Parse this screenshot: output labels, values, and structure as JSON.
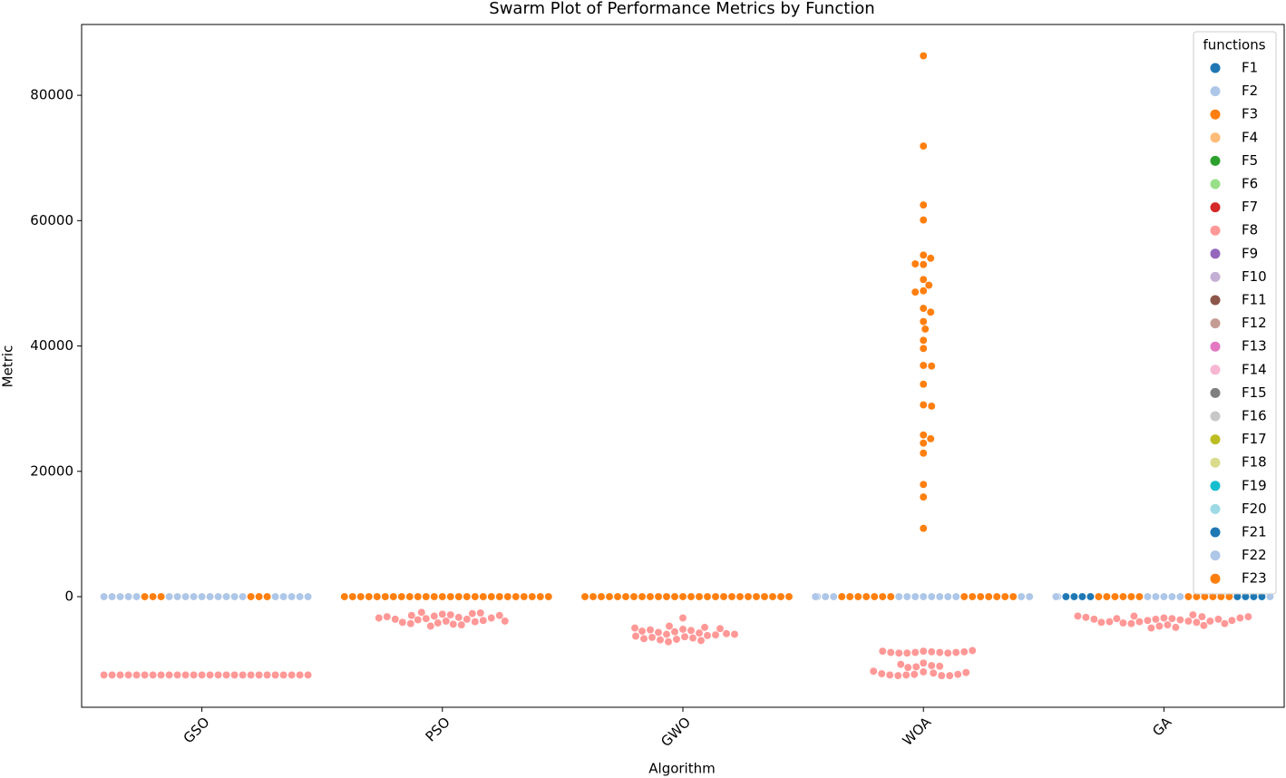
{
  "chart_data": {
    "type": "swarm",
    "title": "Swarm Plot of Performance Metrics by Function",
    "x_label": "Algorithm",
    "y_label": "Metric",
    "legend_title": "functions",
    "legend_position": "upper right",
    "categories": [
      "GSO",
      "PSO",
      "GWO",
      "WOA",
      "GA"
    ],
    "ylim": [
      -17650,
      91300
    ],
    "yticks": [
      0,
      20000,
      40000,
      60000,
      80000
    ],
    "series": [
      {
        "name": "F1",
        "color": "#1f77b4",
        "values": [
          [],
          [],
          [],
          [],
          []
        ]
      },
      {
        "name": "F2",
        "color": "#aec7e8",
        "values": [
          [
            0,
            0,
            0,
            0,
            0,
            0,
            0,
            0,
            0,
            0
          ],
          [],
          [],
          [
            0,
            0,
            0,
            0,
            0,
            0,
            0,
            0
          ],
          [
            0,
            0,
            0,
            0,
            0
          ]
        ]
      },
      {
        "name": "F3",
        "color": "#ff7f0e",
        "values": [
          [
            0,
            0,
            0,
            0,
            0,
            0
          ],
          [
            0,
            0,
            0,
            0,
            0,
            0,
            0,
            0,
            0,
            0,
            0,
            0,
            0,
            0,
            0,
            0,
            0,
            0,
            0,
            0,
            0,
            0,
            0,
            0,
            0,
            0
          ],
          [
            0,
            0,
            0,
            0,
            0,
            0,
            0,
            0,
            0,
            0,
            0,
            0,
            0,
            0,
            0,
            0,
            0,
            0,
            0,
            0,
            0,
            0,
            0,
            0,
            0,
            0
          ],
          [
            0,
            0,
            0,
            0,
            0,
            0,
            0,
            0,
            0,
            0,
            0,
            0,
            0,
            0,
            86300,
            71900,
            62500,
            60100,
            54500,
            54000,
            53000,
            53100,
            50600,
            49700,
            48800,
            48600,
            46000,
            45400,
            43900,
            42700,
            40900,
            39600,
            36900,
            36800,
            33900,
            30600,
            30400,
            25800,
            25200,
            24500,
            22900,
            17900,
            15900,
            10900
          ],
          [
            0,
            0,
            0,
            0,
            0,
            0,
            0,
            0,
            0,
            0,
            0,
            0
          ]
        ]
      },
      {
        "name": "F4",
        "color": "#ffbb78",
        "values": [
          [],
          [],
          [],
          [],
          []
        ]
      },
      {
        "name": "F5",
        "color": "#2ca02c",
        "values": [
          [],
          [],
          [],
          [],
          []
        ]
      },
      {
        "name": "F6",
        "color": "#98df8a",
        "values": [
          [],
          [],
          [],
          [],
          []
        ]
      },
      {
        "name": "F7",
        "color": "#d62728",
        "values": [
          [],
          [],
          [],
          [],
          []
        ]
      },
      {
        "name": "F8",
        "color": "#ff9896",
        "values": [
          [
            -12500,
            -12500,
            -12500,
            -12500,
            -12500,
            -12500,
            -12500,
            -12500,
            -12500,
            -12500,
            -12500,
            -12500,
            -12500,
            -12500,
            -12500,
            -12500,
            -12500,
            -12500,
            -12500,
            -12500,
            -12500,
            -12500,
            -12500,
            -12500,
            -12500,
            -12500
          ],
          [
            -2800,
            -2900,
            -3100,
            -3300,
            -3500,
            -3600,
            -3700,
            -3900,
            -4000,
            -4200,
            -4400,
            -4700,
            -4500,
            -4300,
            -4100,
            -3800,
            -3600,
            -3400,
            -3200,
            -3000,
            -2700,
            -2500,
            -2600,
            -3000,
            -3400,
            -3900
          ],
          [
            -5200,
            -5400,
            -5600,
            -5800,
            -6000,
            -6200,
            -6400,
            -6600,
            -6800,
            -7000,
            -7200,
            -6900,
            -6500,
            -6100,
            -5700,
            -5300,
            -4900,
            -4700,
            -5100,
            -5500,
            -5900,
            -6300,
            -3400,
            -5000,
            -6000,
            -6700
          ],
          [
            -8700,
            -8800,
            -8900,
            -8900,
            -9000,
            -9000,
            -9000,
            -8900,
            -8900,
            -8800,
            -8700,
            -8600,
            -10600,
            -11000,
            -11200,
            -11300,
            -11100,
            -10800,
            -12000,
            -12200,
            -12400,
            -12500,
            -12600,
            -12600,
            -12600,
            -12500,
            -12400,
            -12300,
            -12100,
            -11900
          ],
          [
            -3400,
            -3500,
            -3600,
            -3700,
            -3800,
            -3900,
            -4000,
            -4100,
            -4300,
            -4500,
            -4700,
            -4900,
            -5000,
            -4600,
            -4200,
            -3900,
            -3500,
            -3100,
            -2900,
            -3200,
            -3600,
            -4000,
            -4300,
            -4100,
            -3800,
            -3600,
            -3400,
            -3300,
            -3200,
            -3100
          ]
        ]
      },
      {
        "name": "F9",
        "color": "#9467bd",
        "values": [
          [],
          [],
          [],
          [],
          []
        ]
      },
      {
        "name": "F10",
        "color": "#c5b0d5",
        "values": [
          [],
          [],
          [],
          [],
          []
        ]
      },
      {
        "name": "F11",
        "color": "#8c564b",
        "values": [
          [],
          [],
          [],
          [],
          []
        ]
      },
      {
        "name": "F12",
        "color": "#c49c94",
        "values": [
          [],
          [],
          [],
          [],
          []
        ]
      },
      {
        "name": "F13",
        "color": "#e377c2",
        "values": [
          [],
          [],
          [],
          [],
          []
        ]
      },
      {
        "name": "F14",
        "color": "#f7b6d2",
        "values": [
          [],
          [],
          [],
          [],
          []
        ]
      },
      {
        "name": "F15",
        "color": "#7f7f7f",
        "values": [
          [],
          [],
          [],
          [],
          []
        ]
      },
      {
        "name": "F16",
        "color": "#c7c7c7",
        "values": [
          [],
          [],
          [],
          [],
          []
        ]
      },
      {
        "name": "F17",
        "color": "#bcbd22",
        "values": [
          [],
          [],
          [],
          [],
          []
        ]
      },
      {
        "name": "F18",
        "color": "#dbdb8d",
        "values": [
          [],
          [],
          [],
          [],
          []
        ]
      },
      {
        "name": "F19",
        "color": "#17becf",
        "values": [
          [],
          [],
          [],
          [],
          []
        ]
      },
      {
        "name": "F20",
        "color": "#9edae5",
        "values": [
          [],
          [],
          [],
          [],
          []
        ]
      },
      {
        "name": "F21",
        "color": "#1f77b4",
        "values": [
          [],
          [],
          [],
          [],
          [
            0,
            0,
            0,
            0,
            0,
            0,
            0,
            0
          ]
        ]
      },
      {
        "name": "F22",
        "color": "#aec7e8",
        "values": [
          [
            0,
            0,
            0,
            0,
            0,
            0,
            0,
            0,
            0,
            0
          ],
          [],
          [],
          [
            0,
            0,
            0,
            0,
            0,
            0,
            0,
            0
          ],
          [
            0,
            0,
            0,
            0,
            0
          ]
        ]
      },
      {
        "name": "F23",
        "color": "#ff7f0e",
        "values": [
          [],
          [],
          [],
          [],
          []
        ]
      }
    ]
  }
}
